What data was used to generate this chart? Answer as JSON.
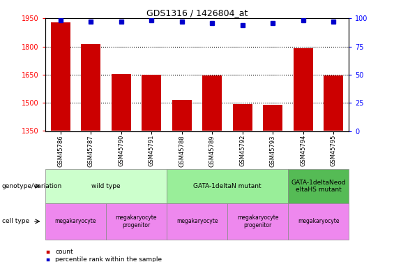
{
  "title": "GDS1316 / 1426804_at",
  "samples": [
    "GSM45786",
    "GSM45787",
    "GSM45790",
    "GSM45791",
    "GSM45788",
    "GSM45789",
    "GSM45792",
    "GSM45793",
    "GSM45794",
    "GSM45795"
  ],
  "bar_values": [
    1930,
    1815,
    1655,
    1650,
    1515,
    1645,
    1493,
    1488,
    1790,
    1645
  ],
  "percentile_values": [
    98,
    97,
    97,
    98,
    97,
    96,
    94,
    96,
    98,
    97
  ],
  "bar_color": "#cc0000",
  "dot_color": "#0000cc",
  "ylim_left": [
    1350,
    1950
  ],
  "ylim_right": [
    0,
    100
  ],
  "yticks_left": [
    1350,
    1500,
    1650,
    1800,
    1950
  ],
  "yticks_right": [
    0,
    25,
    50,
    75,
    100
  ],
  "grid_lines": [
    1500,
    1650,
    1800
  ],
  "genotype_groups": [
    {
      "label": "wild type",
      "start": 0,
      "end": 4,
      "color": "#ccffcc"
    },
    {
      "label": "GATA-1deltaN mutant",
      "start": 4,
      "end": 8,
      "color": "#99ee99"
    },
    {
      "label": "GATA-1deltaNeod\neltaHS mutant",
      "start": 8,
      "end": 10,
      "color": "#55bb55"
    }
  ],
  "cell_type_groups": [
    {
      "label": "megakaryocyte",
      "start": 0,
      "end": 2,
      "color": "#ee88ee"
    },
    {
      "label": "megakaryocyte\nprogenitor",
      "start": 2,
      "end": 4,
      "color": "#ee88ee"
    },
    {
      "label": "megakaryocyte",
      "start": 4,
      "end": 6,
      "color": "#ee88ee"
    },
    {
      "label": "megakaryocyte\nprogenitor",
      "start": 6,
      "end": 8,
      "color": "#ee88ee"
    },
    {
      "label": "megakaryocyte",
      "start": 8,
      "end": 10,
      "color": "#ee88ee"
    }
  ],
  "legend_count_color": "#cc0000",
  "legend_percentile_color": "#0000cc"
}
